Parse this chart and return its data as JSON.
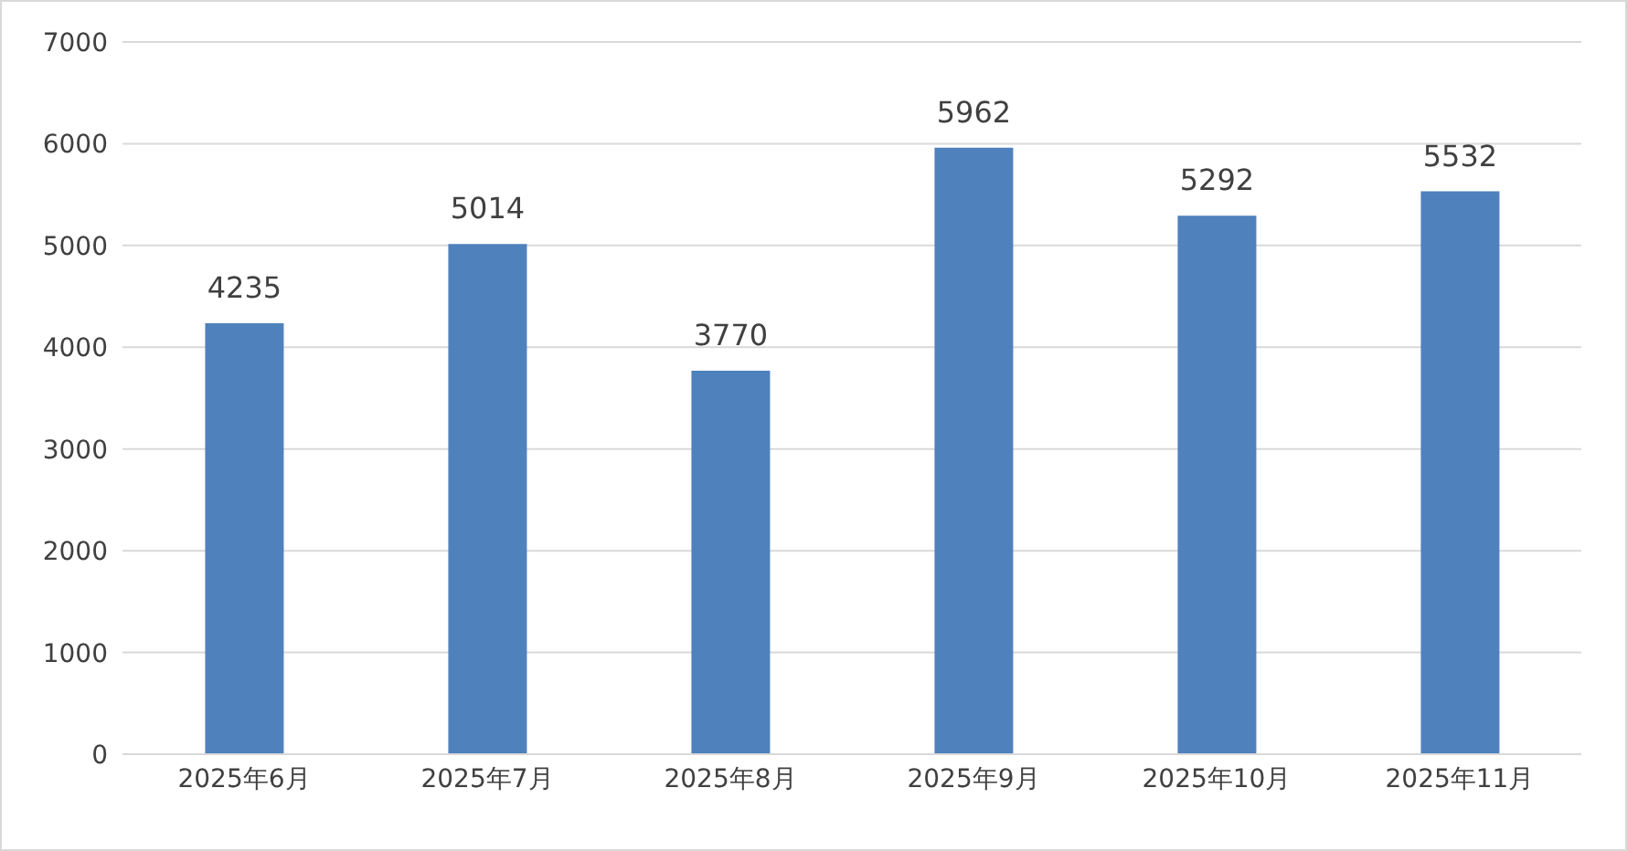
{
  "chart_data": {
    "type": "bar",
    "categories": [
      "2025年6月",
      "2025年7月",
      "2025年8月",
      "2025年9月",
      "2025年10月",
      "2025年11月"
    ],
    "values": [
      4235,
      5014,
      3770,
      5962,
      5292,
      5532
    ],
    "color": "#4f81bd",
    "ylim": [
      0,
      7000
    ],
    "yticks": [
      0,
      1000,
      2000,
      3000,
      4000,
      5000,
      6000,
      7000
    ],
    "grid": "y",
    "data_labels": true
  }
}
